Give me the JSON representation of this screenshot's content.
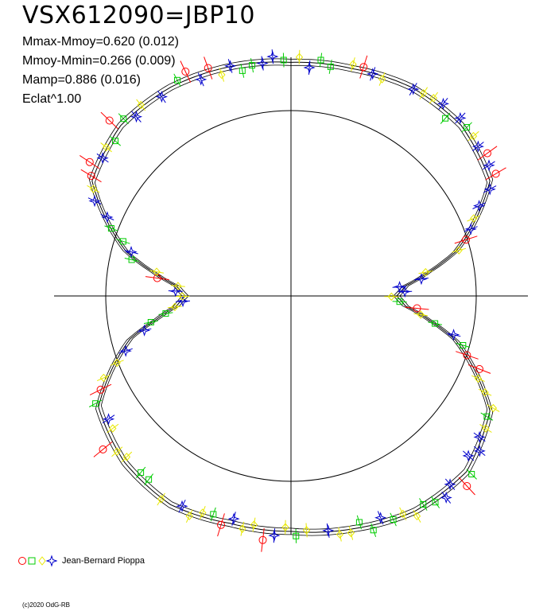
{
  "title": "VSX612090=JBP10",
  "stats": [
    "Mmax-Mmoy=0.620 (0.012)",
    "Mmoy-Mmin=0.266 (0.009)",
    "Mamp=0.886 (0.016)",
    "Eclat^1.00"
  ],
  "legend": {
    "observer": "Jean-Bernard Pioppa"
  },
  "credit": "(c)2020 OdG-RB",
  "colors": {
    "red": "#ff0000",
    "green": "#00cc00",
    "yellow": "#ffff00",
    "blue": "#0000cc",
    "curve": "#000000"
  },
  "chart_data": {
    "type": "polar-light-curve",
    "theta_deg": [
      0,
      15,
      30,
      45,
      60,
      75,
      80,
      85,
      90,
      95,
      100,
      105,
      120,
      135,
      150,
      165,
      180,
      195,
      210,
      225,
      240,
      255,
      260,
      265,
      270,
      275,
      280,
      285,
      300,
      315,
      330,
      345,
      360
    ],
    "radius_factor": [
      1.26,
      1.27,
      1.3,
      1.3,
      1.24,
      0.92,
      0.76,
      0.62,
      0.57,
      0.62,
      0.76,
      0.92,
      1.24,
      1.34,
      1.34,
      1.3,
      1.27,
      1.27,
      1.3,
      1.27,
      1.2,
      0.9,
      0.74,
      0.62,
      0.57,
      0.62,
      0.76,
      0.92,
      1.24,
      1.3,
      1.3,
      1.28,
      1.26
    ],
    "reference_circle_radius_factor": 1.0,
    "series": [
      {
        "marker": "circle",
        "color": "red"
      },
      {
        "marker": "square",
        "color": "green"
      },
      {
        "marker": "diamond",
        "color": "yellow"
      },
      {
        "marker": "star",
        "color": "blue"
      }
    ]
  }
}
